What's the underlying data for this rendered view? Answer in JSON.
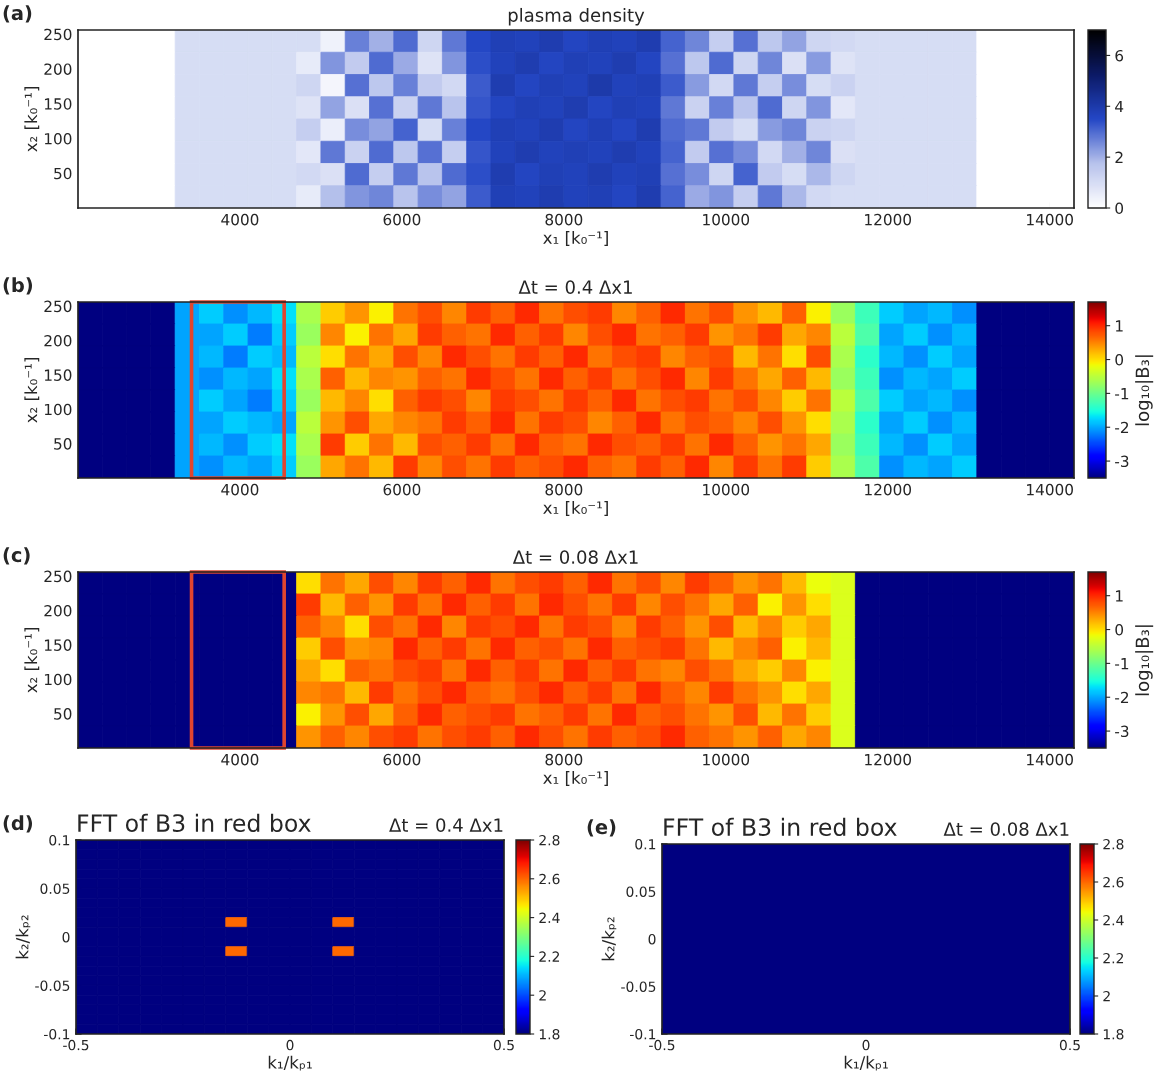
{
  "chart_data": [
    {
      "type": "heatmap",
      "title": "plasma density",
      "xlabel": "x₁ [k₀⁻¹]",
      "ylabel": "x₂ [k₀⁻¹]",
      "annotations": [
        "(a)"
      ],
      "x": [
        2150,
        2450,
        2750,
        3050,
        3350,
        3650,
        3950,
        4250,
        4550,
        4850,
        5150,
        5450,
        5750,
        6050,
        6350,
        6650,
        6950,
        7250,
        7550,
        7850,
        8150,
        8450,
        8750,
        9050,
        9350,
        9650,
        9950,
        10250,
        10550,
        10850,
        11150,
        11450,
        11750,
        12050,
        12350,
        12650,
        12950,
        13250,
        13550,
        13850,
        14150
      ],
      "cells": [
        [
          0,
          0,
          0,
          0,
          1,
          1,
          1,
          1,
          1,
          1.0,
          0.4,
          2.7,
          2.0,
          3.0,
          1.2,
          2.8,
          3.5,
          3.8,
          3.7,
          3.9,
          3.6,
          3.8,
          3.7,
          3.9,
          3.1,
          2.6,
          1.4,
          2.9,
          1.6,
          2.2,
          1.2,
          1.1,
          1,
          1,
          1,
          1,
          1,
          0,
          0,
          0,
          0
        ],
        [
          0,
          0,
          0,
          0,
          1,
          1,
          1,
          1,
          1,
          0.6,
          2.4,
          1.5,
          3.0,
          2.1,
          0.8,
          2.4,
          3.4,
          3.7,
          3.9,
          3.6,
          3.8,
          3.7,
          3.9,
          3.6,
          2.9,
          1.6,
          3.0,
          1.2,
          2.6,
          0.9,
          2.3,
          0.8,
          1,
          1,
          1,
          1,
          1,
          0,
          0,
          0,
          0
        ],
        [
          0,
          0,
          0,
          0,
          1,
          1,
          1,
          1,
          1,
          1.2,
          0.3,
          2.9,
          1.6,
          2.7,
          1.5,
          1.1,
          3.2,
          3.9,
          3.6,
          3.8,
          3.7,
          4.0,
          3.7,
          3.8,
          3.2,
          2.3,
          1.1,
          2.8,
          1.4,
          2.5,
          1.0,
          1.3,
          1,
          1,
          1,
          1,
          1,
          0,
          0,
          0,
          0
        ],
        [
          0,
          0,
          0,
          0,
          1,
          1,
          1,
          1,
          1,
          0.8,
          2.2,
          0.9,
          2.9,
          1.3,
          2.8,
          1.7,
          3.3,
          3.6,
          3.8,
          3.7,
          3.9,
          3.6,
          3.8,
          3.7,
          2.8,
          1.3,
          2.7,
          1.7,
          3.0,
          1.2,
          2.4,
          0.7,
          1,
          1,
          1,
          1,
          1,
          0,
          0,
          0,
          0
        ],
        [
          0,
          0,
          0,
          0,
          1,
          1,
          1,
          1,
          1,
          1.4,
          0.5,
          2.5,
          2.2,
          3.1,
          1.0,
          2.7,
          3.5,
          3.8,
          3.7,
          3.9,
          3.6,
          3.8,
          3.6,
          3.9,
          3.0,
          2.8,
          1.5,
          1.0,
          2.3,
          2.6,
          1.3,
          1.2,
          1,
          1,
          1,
          1,
          1,
          0,
          0,
          0,
          0
        ],
        [
          0,
          0,
          0,
          0,
          1,
          1,
          1,
          1,
          1,
          0.7,
          2.8,
          1.3,
          3.0,
          1.6,
          2.9,
          1.4,
          3.3,
          3.7,
          3.9,
          3.7,
          3.8,
          3.7,
          3.9,
          3.7,
          3.1,
          1.5,
          2.9,
          2.5,
          1.1,
          2.0,
          2.6,
          0.9,
          1,
          1,
          1,
          1,
          1,
          0,
          0,
          0,
          0
        ],
        [
          0,
          0,
          0,
          0,
          1,
          1,
          1,
          1,
          1,
          1.1,
          0.9,
          3.0,
          1.4,
          2.8,
          1.7,
          3.0,
          3.4,
          3.9,
          3.6,
          3.8,
          3.7,
          3.9,
          3.7,
          3.8,
          2.9,
          2.5,
          1.2,
          3.1,
          1.5,
          1.0,
          1.9,
          1.2,
          1,
          1,
          1,
          1,
          1,
          0,
          0,
          0,
          0
        ],
        [
          0,
          0,
          0,
          0,
          1,
          1,
          1,
          1,
          1,
          0.6,
          1.8,
          2.4,
          2.6,
          1.7,
          2.5,
          2.2,
          3.2,
          3.8,
          3.7,
          3.9,
          3.7,
          3.8,
          3.6,
          3.9,
          3.1,
          2.1,
          2.4,
          1.4,
          2.8,
          1.9,
          1.1,
          1.0,
          1,
          1,
          1,
          1,
          1,
          0,
          0,
          0,
          0
        ]
      ],
      "xlim": [
        2000,
        14300
      ],
      "ylim": [
        0,
        256
      ],
      "xticks": [
        4000,
        6000,
        8000,
        10000,
        12000,
        14000
      ],
      "yticks": [
        50,
        100,
        150,
        200,
        250
      ],
      "clim": [
        0,
        7
      ],
      "cticks": [
        0,
        2,
        4,
        6
      ]
    },
    {
      "type": "heatmap",
      "title": "Δt = 0.4 Δx1",
      "xlabel": "x₁ [k₀⁻¹]",
      "ylabel": "x₂ [k₀⁻¹]",
      "clabel": "log₁₀|B₃|",
      "annotations": [
        "(b)"
      ],
      "x": [
        2150,
        2450,
        2750,
        3050,
        3350,
        3650,
        3950,
        4250,
        4550,
        4850,
        5150,
        5450,
        5750,
        6050,
        6350,
        6650,
        6950,
        7250,
        7550,
        7850,
        8150,
        8450,
        8750,
        9050,
        9350,
        9650,
        9950,
        10250,
        10550,
        10850,
        11150,
        11450,
        11750,
        12050,
        12350,
        12650,
        12950,
        13250,
        13550,
        13850,
        14150
      ],
      "cells": [
        [
          -3.5,
          -3.5,
          -3.5,
          -3.5,
          -2.0,
          -1.8,
          -2.1,
          -1.9,
          -1.7,
          -0.6,
          0.1,
          0.4,
          -0.1,
          0.6,
          0.8,
          0.5,
          0.9,
          0.7,
          1.0,
          0.6,
          0.8,
          0.9,
          0.5,
          0.7,
          1.0,
          0.6,
          0.8,
          0.4,
          0.2,
          0.7,
          -0.1,
          -0.7,
          -1.3,
          -1.8,
          -2.0,
          -1.9,
          -2.1,
          -3.5,
          -3.5,
          -3.5,
          -3.5
        ],
        [
          -3.5,
          -3.5,
          -3.5,
          -3.5,
          -2.0,
          -2.0,
          -1.8,
          -2.2,
          -1.8,
          -0.7,
          0.5,
          -0.1,
          0.6,
          0.3,
          0.9,
          0.7,
          0.6,
          1.0,
          0.7,
          0.9,
          0.5,
          0.8,
          1.0,
          0.6,
          0.7,
          0.9,
          0.4,
          0.6,
          0.9,
          0.3,
          0.5,
          -0.5,
          -1.2,
          -2.0,
          -1.8,
          -2.1,
          -1.9,
          -3.5,
          -3.5,
          -3.5,
          -3.5
        ],
        [
          -3.5,
          -3.5,
          -3.5,
          -3.5,
          -2.0,
          -1.9,
          -2.2,
          -1.8,
          -1.9,
          -0.5,
          0.0,
          0.6,
          0.3,
          0.8,
          0.5,
          1.0,
          0.8,
          0.6,
          0.9,
          0.7,
          1.0,
          0.6,
          0.8,
          0.9,
          0.5,
          0.7,
          0.8,
          0.2,
          0.6,
          0.0,
          0.8,
          -0.6,
          -1.4,
          -1.9,
          -2.1,
          -1.8,
          -2.0,
          -3.5,
          -3.5,
          -3.5,
          -3.5
        ],
        [
          -3.5,
          -3.5,
          -3.5,
          -3.5,
          -2.0,
          -2.1,
          -1.9,
          -2.0,
          -1.7,
          -0.6,
          0.7,
          0.2,
          0.5,
          0.4,
          0.7,
          0.6,
          1.0,
          0.8,
          0.6,
          1.0,
          0.7,
          0.9,
          0.6,
          0.8,
          1.0,
          0.5,
          0.9,
          0.6,
          0.3,
          0.7,
          0.2,
          -0.7,
          -1.3,
          -2.1,
          -1.9,
          -2.0,
          -1.8,
          -3.5,
          -3.5,
          -3.5,
          -3.5
        ],
        [
          -3.5,
          -3.5,
          -3.5,
          -3.5,
          -2.0,
          -1.8,
          -2.0,
          -2.2,
          -1.8,
          -0.7,
          0.2,
          0.5,
          0.0,
          0.7,
          0.9,
          0.8,
          0.5,
          0.9,
          0.8,
          0.6,
          0.9,
          0.7,
          1.0,
          0.6,
          0.8,
          0.9,
          0.6,
          0.8,
          0.5,
          0.1,
          0.6,
          -0.5,
          -1.2,
          -1.8,
          -2.0,
          -1.9,
          -2.1,
          -3.5,
          -3.5,
          -3.5,
          -3.5
        ],
        [
          -3.5,
          -3.5,
          -3.5,
          -3.5,
          -2.0,
          -2.0,
          -1.8,
          -1.9,
          -2.0,
          -0.5,
          0.4,
          0.8,
          0.3,
          0.5,
          0.6,
          0.9,
          0.7,
          1.0,
          0.6,
          0.9,
          0.8,
          0.5,
          0.7,
          1.0,
          0.6,
          0.8,
          0.7,
          0.5,
          0.8,
          0.4,
          0.0,
          -0.6,
          -1.4,
          -2.0,
          -1.8,
          -2.1,
          -1.9,
          -3.5,
          -3.5,
          -3.5,
          -3.5
        ],
        [
          -3.5,
          -3.5,
          -3.5,
          -3.5,
          -2.0,
          -1.9,
          -2.1,
          -1.8,
          -1.7,
          -0.6,
          0.9,
          0.1,
          0.6,
          0.2,
          0.8,
          0.7,
          0.9,
          0.6,
          1.0,
          0.7,
          0.6,
          1.0,
          0.8,
          0.7,
          0.9,
          0.6,
          1.0,
          0.7,
          0.4,
          0.6,
          0.3,
          -0.7,
          -1.3,
          -1.9,
          -2.1,
          -1.8,
          -2.0,
          -3.5,
          -3.5,
          -3.5,
          -3.5
        ],
        [
          -3.5,
          -3.5,
          -3.5,
          -3.5,
          -2.0,
          -2.1,
          -1.9,
          -2.0,
          -1.8,
          -0.7,
          0.3,
          0.6,
          0.2,
          0.9,
          0.5,
          0.8,
          0.6,
          0.9,
          0.7,
          0.8,
          1.0,
          0.7,
          0.6,
          0.9,
          0.7,
          1.0,
          0.5,
          0.9,
          0.6,
          0.9,
          0.1,
          -0.6,
          -1.2,
          -2.1,
          -1.9,
          -2.0,
          -1.8,
          -3.5,
          -3.5,
          -3.5,
          -3.5
        ]
      ],
      "xlim": [
        2000,
        14300
      ],
      "ylim": [
        0,
        256
      ],
      "xticks": [
        4000,
        6000,
        8000,
        10000,
        12000,
        14000
      ],
      "yticks": [
        50,
        100,
        150,
        200,
        250
      ],
      "clim": [
        -3.5,
        1.7
      ],
      "cticks": [
        -3,
        -2,
        -1,
        0,
        1
      ]
    },
    {
      "type": "heatmap",
      "title": "Δt = 0.08 Δx1",
      "xlabel": "x₁ [k₀⁻¹]",
      "ylabel": "x₂ [k₀⁻¹]",
      "clabel": "log₁₀|B₃|",
      "annotations": [
        "(c)"
      ],
      "x": [
        2150,
        2450,
        2750,
        3050,
        3350,
        3650,
        3950,
        4250,
        4550,
        4850,
        5150,
        5450,
        5750,
        6050,
        6350,
        6650,
        6950,
        7250,
        7550,
        7850,
        8150,
        8450,
        8750,
        9050,
        9350,
        9650,
        9950,
        10250,
        10550,
        10850,
        11150,
        11450,
        11750,
        12050,
        12350,
        12650,
        12950,
        13250,
        13550,
        13850,
        14150
      ],
      "cells": [
        [
          -3.5,
          -3.5,
          -3.5,
          -3.5,
          -3.5,
          -3.5,
          -3.5,
          -3.5,
          -3.5,
          0.0,
          0.6,
          0.3,
          0.8,
          0.5,
          0.9,
          0.7,
          1.0,
          0.6,
          0.8,
          0.9,
          0.7,
          1.0,
          0.6,
          0.8,
          0.5,
          0.9,
          0.7,
          0.4,
          0.6,
          0.2,
          -0.2,
          -0.3,
          -3.5,
          -3.5,
          -3.5,
          -3.5,
          -3.5,
          -3.5,
          -3.5,
          -3.5,
          -3.5
        ],
        [
          -3.5,
          -3.5,
          -3.5,
          -3.5,
          -3.5,
          -3.5,
          -3.5,
          -3.5,
          -3.5,
          0.9,
          0.2,
          0.7,
          0.4,
          0.9,
          0.6,
          1.0,
          0.7,
          0.9,
          0.6,
          1.0,
          0.8,
          0.6,
          0.9,
          0.5,
          0.8,
          0.6,
          0.3,
          0.7,
          -0.1,
          0.4,
          0.0,
          -0.3,
          -3.5,
          -3.5,
          -3.5,
          -3.5,
          -3.5,
          -3.5,
          -3.5,
          -3.5,
          -3.5
        ],
        [
          -3.5,
          -3.5,
          -3.5,
          -3.5,
          -3.5,
          -3.5,
          -3.5,
          -3.5,
          -3.5,
          0.7,
          0.5,
          0.0,
          0.8,
          0.6,
          1.0,
          0.5,
          0.9,
          0.8,
          1.0,
          0.6,
          0.9,
          0.8,
          0.5,
          0.9,
          0.7,
          0.4,
          0.8,
          0.2,
          0.5,
          0.1,
          0.3,
          -0.3,
          -3.5,
          -3.5,
          -3.5,
          -3.5,
          -3.5,
          -3.5,
          -3.5,
          -3.5,
          -3.5
        ],
        [
          -3.5,
          -3.5,
          -3.5,
          -3.5,
          -3.5,
          -3.5,
          -3.5,
          -3.5,
          -3.5,
          0.1,
          0.8,
          0.4,
          0.5,
          1.0,
          0.7,
          0.9,
          0.6,
          1.0,
          0.7,
          0.8,
          0.6,
          1.0,
          0.7,
          0.8,
          0.9,
          0.6,
          0.2,
          0.5,
          0.7,
          -0.1,
          0.2,
          -0.3,
          -3.5,
          -3.5,
          -3.5,
          -3.5,
          -3.5,
          -3.5,
          -3.5,
          -3.5,
          -3.5
        ],
        [
          -3.5,
          -3.5,
          -3.5,
          -3.5,
          -3.5,
          -3.5,
          -3.5,
          -3.5,
          -3.5,
          0.3,
          0.0,
          0.7,
          0.6,
          0.8,
          0.9,
          0.6,
          1.0,
          0.7,
          0.9,
          0.6,
          1.0,
          0.7,
          0.9,
          0.6,
          0.5,
          0.8,
          0.6,
          0.3,
          0.1,
          0.5,
          -0.1,
          -0.3,
          -3.5,
          -3.5,
          -3.5,
          -3.5,
          -3.5,
          -3.5,
          -3.5,
          -3.5,
          -3.5
        ],
        [
          -3.5,
          -3.5,
          -3.5,
          -3.5,
          -3.5,
          -3.5,
          -3.5,
          -3.5,
          -3.5,
          0.5,
          0.6,
          0.2,
          0.9,
          0.6,
          0.8,
          1.0,
          0.7,
          0.6,
          0.8,
          1.0,
          0.7,
          0.9,
          0.6,
          1.0,
          0.7,
          0.5,
          0.9,
          0.6,
          0.4,
          0.0,
          0.3,
          -0.3,
          -3.5,
          -3.5,
          -3.5,
          -3.5,
          -3.5,
          -3.5,
          -3.5,
          -3.5,
          -3.5
        ],
        [
          -3.5,
          -3.5,
          -3.5,
          -3.5,
          -3.5,
          -3.5,
          -3.5,
          -3.5,
          -3.5,
          -0.1,
          0.4,
          0.8,
          0.3,
          0.7,
          1.0,
          0.7,
          0.8,
          0.9,
          0.6,
          0.7,
          0.9,
          0.6,
          1.0,
          0.7,
          0.8,
          0.6,
          0.4,
          0.8,
          0.2,
          0.6,
          0.1,
          -0.3,
          -3.5,
          -3.5,
          -3.5,
          -3.5,
          -3.5,
          -3.5,
          -3.5,
          -3.5,
          -3.5
        ],
        [
          -3.5,
          -3.5,
          -3.5,
          -3.5,
          -3.5,
          -3.5,
          -3.5,
          -3.5,
          -3.5,
          0.4,
          0.7,
          0.5,
          0.8,
          0.9,
          0.6,
          0.8,
          0.9,
          0.7,
          1.0,
          0.8,
          0.6,
          0.9,
          0.7,
          0.8,
          1.0,
          0.7,
          0.6,
          0.4,
          0.7,
          0.3,
          0.5,
          -0.3,
          -3.5,
          -3.5,
          -3.5,
          -3.5,
          -3.5,
          -3.5,
          -3.5,
          -3.5,
          -3.5
        ]
      ],
      "xlim": [
        2000,
        14300
      ],
      "ylim": [
        0,
        256
      ],
      "xticks": [
        4000,
        6000,
        8000,
        10000,
        12000,
        14000
      ],
      "yticks": [
        50,
        100,
        150,
        200,
        250
      ],
      "clim": [
        -3.5,
        1.7
      ],
      "cticks": [
        -3,
        -2,
        -1,
        0,
        1
      ]
    },
    {
      "type": "heatmap",
      "title": "FFT of B3 in red box",
      "subtitle": "Δt = 0.4 Δx1",
      "xlabel": "k₁/kₚ₁",
      "ylabel": "k₂/kₚ₂",
      "annotations": [
        "(d)"
      ],
      "x": [
        -0.475,
        -0.425,
        -0.375,
        -0.325,
        -0.275,
        -0.225,
        -0.175,
        -0.125,
        -0.075,
        -0.025,
        0.025,
        0.075,
        0.125,
        0.175,
        0.225,
        0.275,
        0.325,
        0.375,
        0.425,
        0.475
      ],
      "cells": [
        [
          1.8,
          1.8,
          1.8,
          1.8,
          1.8,
          1.8,
          1.8,
          1.8,
          1.8,
          1.8,
          1.8,
          1.8,
          1.8,
          1.8,
          1.8,
          1.8,
          1.8,
          1.8,
          1.8,
          1.8
        ],
        [
          1.8,
          1.8,
          1.8,
          1.8,
          1.8,
          1.8,
          1.8,
          1.8,
          1.8,
          1.8,
          1.8,
          1.8,
          1.8,
          1.8,
          1.8,
          1.8,
          1.8,
          1.8,
          1.8,
          1.8
        ],
        [
          1.8,
          1.8,
          1.8,
          1.8,
          1.8,
          1.8,
          1.8,
          1.8,
          1.8,
          1.8,
          1.8,
          1.8,
          1.8,
          1.8,
          1.8,
          1.8,
          1.8,
          1.8,
          1.8,
          1.8
        ],
        [
          1.8,
          1.8,
          1.8,
          1.8,
          1.8,
          1.8,
          1.8,
          1.8,
          1.8,
          1.8,
          1.8,
          1.8,
          1.8,
          1.8,
          1.8,
          1.8,
          1.8,
          1.8,
          1.8,
          1.8
        ],
        [
          1.8,
          1.8,
          1.8,
          1.8,
          1.8,
          1.8,
          1.8,
          1.8,
          1.8,
          1.8,
          1.8,
          1.8,
          1.8,
          1.8,
          1.8,
          1.8,
          1.8,
          1.8,
          1.8,
          1.8
        ],
        [
          1.8,
          1.8,
          1.8,
          1.8,
          1.8,
          1.8,
          1.8,
          1.8,
          1.8,
          1.8,
          1.8,
          1.8,
          1.8,
          1.8,
          1.8,
          1.8,
          1.8,
          1.8,
          1.8,
          1.8
        ],
        [
          1.8,
          1.8,
          1.8,
          1.8,
          1.8,
          1.8,
          1.8,
          1.8,
          1.8,
          1.8,
          1.8,
          1.8,
          1.8,
          1.8,
          1.8,
          1.8,
          1.8,
          1.8,
          1.8,
          1.8
        ],
        [
          1.8,
          1.8,
          1.8,
          1.8,
          1.8,
          1.8,
          1.8,
          1.8,
          1.8,
          1.8,
          1.8,
          1.8,
          1.8,
          1.8,
          1.8,
          1.8,
          1.8,
          1.8,
          1.8,
          1.8
        ],
        [
          1.8,
          1.8,
          1.8,
          1.8,
          1.8,
          1.8,
          1.8,
          2.6,
          1.8,
          1.8,
          1.8,
          1.8,
          2.6,
          1.8,
          1.8,
          1.8,
          1.8,
          1.8,
          1.8,
          1.8
        ],
        [
          1.8,
          1.8,
          1.8,
          1.8,
          1.8,
          1.8,
          1.8,
          1.8,
          1.8,
          1.8,
          1.8,
          1.8,
          1.8,
          1.8,
          1.8,
          1.8,
          1.8,
          1.8,
          1.8,
          1.8
        ],
        [
          1.8,
          1.8,
          1.8,
          1.8,
          1.8,
          1.8,
          1.8,
          1.8,
          1.8,
          1.8,
          1.8,
          1.8,
          1.8,
          1.8,
          1.8,
          1.8,
          1.8,
          1.8,
          1.8,
          1.8
        ],
        [
          1.8,
          1.8,
          1.8,
          1.8,
          1.8,
          1.8,
          1.8,
          2.6,
          1.8,
          1.8,
          1.8,
          1.8,
          2.6,
          1.8,
          1.8,
          1.8,
          1.8,
          1.8,
          1.8,
          1.8
        ],
        [
          1.8,
          1.8,
          1.8,
          1.8,
          1.8,
          1.8,
          1.8,
          1.8,
          1.8,
          1.8,
          1.8,
          1.8,
          1.8,
          1.8,
          1.8,
          1.8,
          1.8,
          1.8,
          1.8,
          1.8
        ],
        [
          1.8,
          1.8,
          1.8,
          1.8,
          1.8,
          1.8,
          1.8,
          1.8,
          1.8,
          1.8,
          1.8,
          1.8,
          1.8,
          1.8,
          1.8,
          1.8,
          1.8,
          1.8,
          1.8,
          1.8
        ],
        [
          1.8,
          1.8,
          1.8,
          1.8,
          1.8,
          1.8,
          1.8,
          1.8,
          1.8,
          1.8,
          1.8,
          1.8,
          1.8,
          1.8,
          1.8,
          1.8,
          1.8,
          1.8,
          1.8,
          1.8
        ],
        [
          1.8,
          1.8,
          1.8,
          1.8,
          1.8,
          1.8,
          1.8,
          1.8,
          1.8,
          1.8,
          1.8,
          1.8,
          1.8,
          1.8,
          1.8,
          1.8,
          1.8,
          1.8,
          1.8,
          1.8
        ],
        [
          1.8,
          1.8,
          1.8,
          1.8,
          1.8,
          1.8,
          1.8,
          1.8,
          1.8,
          1.8,
          1.8,
          1.8,
          1.8,
          1.8,
          1.8,
          1.8,
          1.8,
          1.8,
          1.8,
          1.8
        ],
        [
          1.8,
          1.8,
          1.8,
          1.8,
          1.8,
          1.8,
          1.8,
          1.8,
          1.8,
          1.8,
          1.8,
          1.8,
          1.8,
          1.8,
          1.8,
          1.8,
          1.8,
          1.8,
          1.8,
          1.8
        ],
        [
          1.8,
          1.8,
          1.8,
          1.8,
          1.8,
          1.8,
          1.8,
          1.8,
          1.8,
          1.8,
          1.8,
          1.8,
          1.8,
          1.8,
          1.8,
          1.8,
          1.8,
          1.8,
          1.8,
          1.8
        ],
        [
          1.8,
          1.8,
          1.8,
          1.8,
          1.8,
          1.8,
          1.8,
          1.8,
          1.8,
          1.8,
          1.8,
          1.8,
          1.8,
          1.8,
          1.8,
          1.8,
          1.8,
          1.8,
          1.8,
          1.8
        ]
      ],
      "xlim": [
        -0.5,
        0.5
      ],
      "ylim": [
        -0.1,
        0.1
      ],
      "xticks": [
        -0.5,
        0,
        0.5
      ],
      "yticks": [
        -0.1,
        -0.05,
        0,
        0.05,
        0.1
      ],
      "clim": [
        1.8,
        2.8
      ],
      "cticks": [
        1.8,
        2,
        2.2,
        2.4,
        2.6,
        2.8
      ]
    },
    {
      "type": "heatmap",
      "title": "FFT of B3 in red box",
      "subtitle": "Δt = 0.08 Δx1",
      "xlabel": "k₁/kₚ₁",
      "ylabel": "k₂/kₚ₂",
      "annotations": [
        "(e)"
      ],
      "cells": [
        [
          1.8
        ]
      ],
      "xlim": [
        -0.5,
        0.5
      ],
      "ylim": [
        -0.1,
        0.1
      ],
      "xticks": [
        -0.5,
        0,
        0.5
      ],
      "yticks": [
        -0.1,
        -0.05,
        0,
        0.05,
        0.1
      ],
      "clim": [
        1.8,
        2.8
      ],
      "cticks": [
        1.8,
        2,
        2.2,
        2.4,
        2.6,
        2.8
      ]
    }
  ]
}
